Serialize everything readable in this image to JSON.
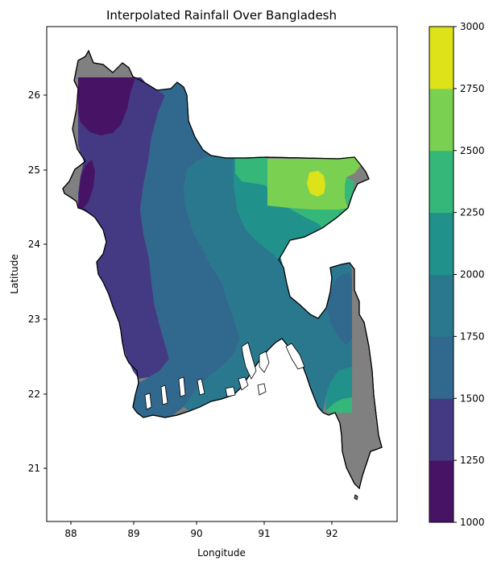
{
  "title": "Interpolated Rainfall Over Bangladesh",
  "map": {
    "xlabel": "Longitude",
    "ylabel": "Latitude",
    "x_ticks": [
      "88",
      "89",
      "90",
      "91",
      "92"
    ],
    "y_ticks": [
      "21",
      "22",
      "23",
      "24",
      "25",
      "26"
    ],
    "x_range": [
      87.8,
      92.9
    ],
    "y_range": [
      20.3,
      26.9
    ],
    "land_color": "#808080",
    "border_color": "#000000"
  },
  "colorbar": {
    "tick_labels": [
      "1000",
      "1250",
      "1500",
      "1750",
      "2000",
      "2250",
      "2500",
      "2750",
      "3000"
    ],
    "levels": [
      1000,
      1250,
      1500,
      1750,
      2000,
      2250,
      2500,
      2750,
      3000
    ],
    "colors": [
      "#471365",
      "#443A83",
      "#31688E",
      "#2A788E",
      "#21918C",
      "#35B779",
      "#7AD151",
      "#DDE318"
    ]
  }
}
